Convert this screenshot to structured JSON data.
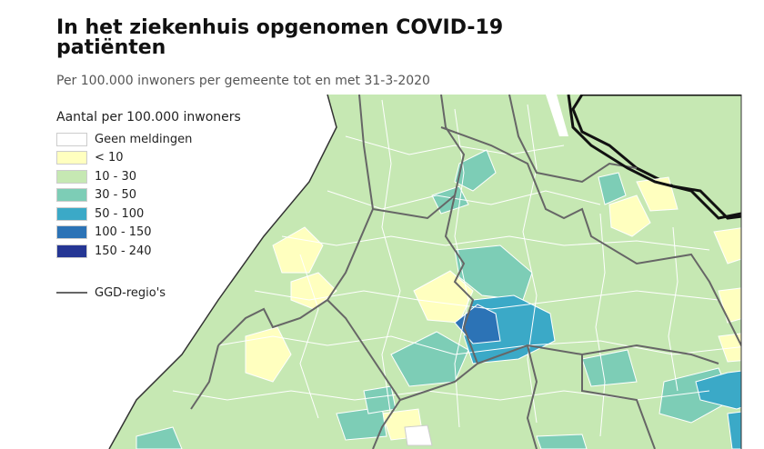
{
  "header": {
    "title": "In het ziekenhuis opgenomen COVID-19 patiënten",
    "subtitle": "Per 100.000 inwoners per gemeente tot en met 31-3-2020"
  },
  "legend": {
    "title": "Aantal per 100.000 inwoners",
    "items": [
      {
        "label": "Geen meldingen",
        "color": "#ffffff"
      },
      {
        "label": "< 10",
        "color": "#ffffbf"
      },
      {
        "label": "10 - 30",
        "color": "#c6e8b3"
      },
      {
        "label": "30 - 50",
        "color": "#7dcdb6"
      },
      {
        "label": "50 - 100",
        "color": "#3ba9c7"
      },
      {
        "label": "100 - 150",
        "color": "#2c73b6"
      },
      {
        "label": "150 - 240",
        "color": "#253694"
      }
    ],
    "ggd_label": "GGD-regio's"
  },
  "colors": {
    "ggd_border": "#666666",
    "municipality_border": "#ffffff",
    "province_border": "#111111"
  }
}
